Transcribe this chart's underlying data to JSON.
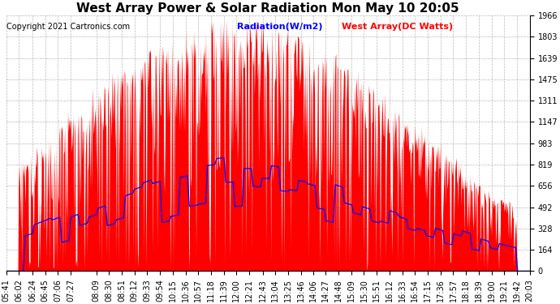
{
  "title": "West Array Power & Solar Radiation Mon May 10 20:05",
  "copyright": "Copyright 2021 Cartronics.com",
  "legend_radiation": "Radiation(W/m2)",
  "legend_west": "West Array(DC Watts)",
  "ymax": 1966.5,
  "yticks": [
    0.0,
    163.9,
    327.7,
    491.6,
    655.5,
    819.4,
    983.2,
    1147.1,
    1311.0,
    1474.8,
    1638.7,
    1802.6,
    1966.5
  ],
  "xtick_labels": [
    "05:41",
    "06:02",
    "06:24",
    "06:45",
    "07:06",
    "07:27",
    "08:09",
    "08:30",
    "08:51",
    "09:12",
    "09:33",
    "09:54",
    "10:15",
    "10:36",
    "10:57",
    "11:18",
    "11:39",
    "12:00",
    "12:21",
    "12:43",
    "13:04",
    "13:25",
    "13:46",
    "14:06",
    "14:27",
    "14:48",
    "15:09",
    "15:30",
    "15:51",
    "16:12",
    "16:33",
    "16:54",
    "17:15",
    "17:36",
    "17:57",
    "18:18",
    "18:39",
    "19:00",
    "19:21",
    "19:42",
    "20:03"
  ],
  "color_radiation": "#0000ff",
  "color_west": "#ff0000",
  "color_west_fill": "#ff0000",
  "bg_color": "#ffffff",
  "grid_color": "#888888",
  "title_fontsize": 11,
  "tick_fontsize": 7,
  "legend_fontsize": 8,
  "copyright_fontsize": 7
}
